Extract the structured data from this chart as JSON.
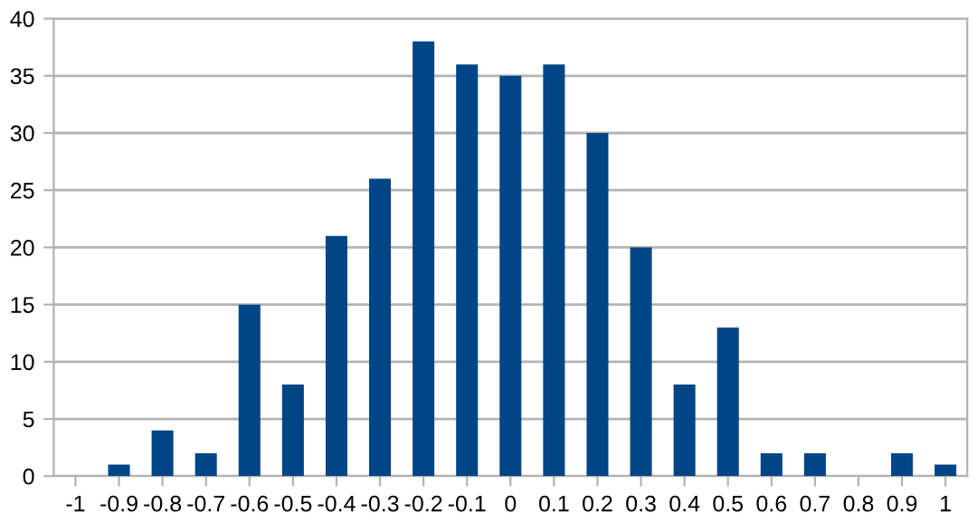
{
  "chart_data": {
    "type": "bar",
    "categories": [
      "-1",
      "-0.9",
      "-0.8",
      "-0.7",
      "-0.6",
      "-0.5",
      "-0.4",
      "-0.3",
      "-0.2",
      "-0.1",
      "0",
      "0.1",
      "0.2",
      "0.3",
      "0.4",
      "0.5",
      "0.6",
      "0.7",
      "0.8",
      "0.9",
      "1"
    ],
    "values": [
      0,
      1,
      4,
      2,
      15,
      8,
      21,
      26,
      38,
      36,
      35,
      36,
      30,
      20,
      8,
      13,
      2,
      2,
      0,
      2,
      1
    ],
    "color": "#004586",
    "ylim": [
      0,
      40
    ],
    "yticks": [
      0,
      5,
      10,
      15,
      20,
      25,
      30,
      35,
      40
    ],
    "grid": "y"
  }
}
